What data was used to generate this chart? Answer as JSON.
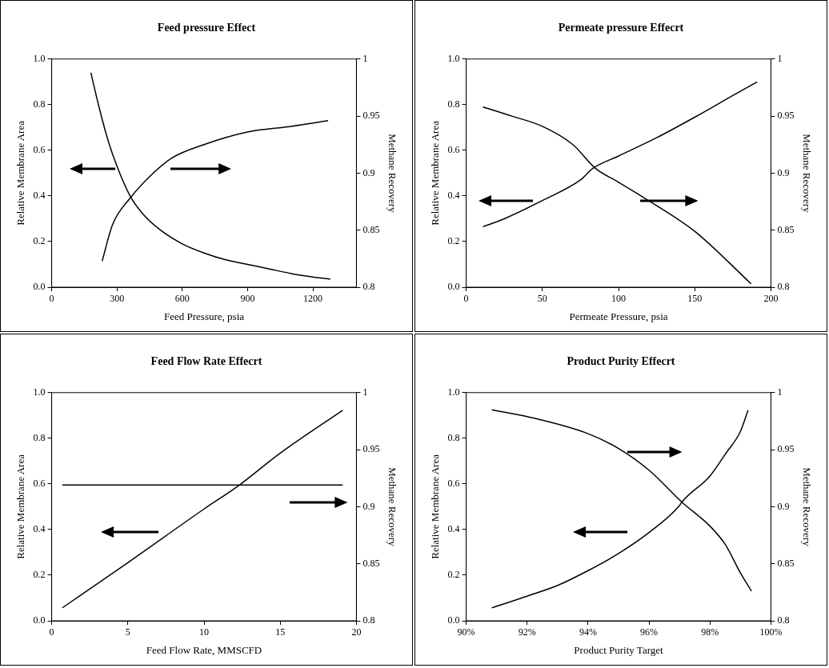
{
  "chart_data": [
    {
      "type": "line",
      "title": "Feed pressure Effect",
      "xlabel": "Feed Pressure, psia",
      "ylabel": "Relative Membrane Area",
      "y2label": "Methane Recovery",
      "marker": "none",
      "xlim": [
        0,
        1400
      ],
      "xticks": [
        0,
        300,
        600,
        900,
        1200
      ],
      "ylim": [
        0,
        1
      ],
      "yticks": [
        {
          "value": 0,
          "label": "0.0"
        },
        {
          "value": 0.2,
          "label": "0.2"
        },
        {
          "value": 0.4,
          "label": "0.4"
        },
        {
          "value": 0.6,
          "label": "0.6"
        },
        {
          "value": 0.8,
          "label": "0.8"
        },
        {
          "value": 1,
          "label": "1.0"
        }
      ],
      "y2lim": [
        0.8,
        1
      ],
      "y2ticks": [
        0.8,
        0.85,
        0.9,
        0.95,
        1
      ],
      "series": [
        {
          "color": "#000000",
          "x": [
            180,
            220,
            260,
            300,
            360,
            420,
            500,
            600,
            700,
            800,
            900,
            1000,
            1100,
            1200,
            1280
          ],
          "values": [
            0.94,
            0.78,
            0.64,
            0.53,
            0.4,
            0.32,
            0.25,
            0.19,
            0.15,
            0.12,
            0.1,
            0.08,
            0.06,
            0.045,
            0.035
          ]
        },
        {
          "color": "#000000",
          "axis": "y2",
          "x": [
            232,
            280,
            360,
            450,
            550,
            700,
            900,
            1100,
            1270
          ],
          "values": [
            0.823,
            0.855,
            0.878,
            0.897,
            0.913,
            0.925,
            0.936,
            0.941,
            0.946
          ]
        }
      ]
    },
    {
      "type": "line",
      "title": "Permeate pressure Effecrt",
      "xlabel": "Permeate Pressure, psia",
      "ylabel": "Relative Membrane Area",
      "y2label": "Methane Recovery",
      "marker": "none",
      "xlim": [
        0,
        200
      ],
      "xticks": [
        0,
        50,
        100,
        150,
        200
      ],
      "ylim": [
        0,
        1
      ],
      "yticks": [
        {
          "value": 0,
          "label": "0.0"
        },
        {
          "value": 0.2,
          "label": "0.2"
        },
        {
          "value": 0.4,
          "label": "0.4"
        },
        {
          "value": 0.6,
          "label": "0.6"
        },
        {
          "value": 0.8,
          "label": "0.8"
        },
        {
          "value": 1,
          "label": "1.0"
        }
      ],
      "y2lim": [
        0.8,
        1
      ],
      "y2ticks": [
        0.8,
        0.85,
        0.9,
        0.95,
        1
      ],
      "series": [
        {
          "color": "#000000",
          "x": [
            11,
            25,
            50,
            75,
            83,
            100,
            125,
            150,
            175,
            191
          ],
          "values": [
            0.265,
            0.3,
            0.38,
            0.47,
            0.52,
            0.575,
            0.655,
            0.745,
            0.84,
            0.9
          ]
        },
        {
          "color": "#000000",
          "axis": "y2",
          "x": [
            11,
            30,
            50,
            70,
            85,
            100,
            116,
            150,
            187
          ],
          "values": [
            0.958,
            0.95,
            0.941,
            0.925,
            0.904,
            0.892,
            0.879,
            0.849,
            0.803
          ]
        }
      ]
    },
    {
      "type": "line",
      "title": "Feed Flow Rate Effecrt",
      "xlabel": "Feed Flow Rate, MMSCFD",
      "ylabel": "Relative Membrane Area",
      "y2label": "Methane Recovery",
      "marker": "none",
      "xlim": [
        0,
        20
      ],
      "xticks": [
        0,
        5,
        10,
        15,
        20
      ],
      "ylim": [
        0,
        1
      ],
      "yticks": [
        {
          "value": 0,
          "label": "0.0"
        },
        {
          "value": 0.2,
          "label": "0.2"
        },
        {
          "value": 0.4,
          "label": "0.4"
        },
        {
          "value": 0.6,
          "label": "0.6"
        },
        {
          "value": 0.8,
          "label": "0.8"
        },
        {
          "value": 1,
          "label": "1.0"
        }
      ],
      "y2lim": [
        0.8,
        1
      ],
      "y2ticks": [
        0.8,
        0.85,
        0.9,
        0.95,
        1
      ],
      "series": [
        {
          "color": "#000000",
          "x": [
            0.7,
            5,
            10,
            12.3,
            15,
            19.1
          ],
          "values": [
            0.057,
            0.255,
            0.49,
            0.594,
            0.735,
            0.923
          ]
        },
        {
          "color": "#000000",
          "axis": "y2",
          "x": [
            0.7,
            19.1
          ],
          "values": [
            0.919,
            0.919
          ]
        }
      ]
    },
    {
      "type": "line",
      "title": "Product Purity Effecrt",
      "xlabel": "Product Purity Target",
      "ylabel": "Relative Membrane Area",
      "y2label": "Methane Recovery",
      "marker": "none",
      "xlim": [
        90,
        100
      ],
      "xticks": [
        {
          "value": 90,
          "label": "90%"
        },
        {
          "value": 92,
          "label": "92%"
        },
        {
          "value": 94,
          "label": "94%"
        },
        {
          "value": 96,
          "label": "96%"
        },
        {
          "value": 98,
          "label": "98%"
        },
        {
          "value": 100,
          "label": "100%"
        }
      ],
      "ylim": [
        0,
        1
      ],
      "yticks": [
        {
          "value": 0,
          "label": "0.0"
        },
        {
          "value": 0.2,
          "label": "0.2"
        },
        {
          "value": 0.4,
          "label": "0.4"
        },
        {
          "value": 0.6,
          "label": "0.6"
        },
        {
          "value": 0.8,
          "label": "0.8"
        },
        {
          "value": 1,
          "label": "1.0"
        }
      ],
      "y2lim": [
        0.8,
        1
      ],
      "y2ticks": [
        0.8,
        0.85,
        0.9,
        0.95,
        1
      ],
      "series": [
        {
          "color": "#000000",
          "x": [
            90.84,
            92,
            93,
            94,
            95,
            96,
            97,
            97.08,
            98,
            98.5,
            99,
            99.25
          ],
          "values": [
            0.057,
            0.108,
            0.155,
            0.22,
            0.295,
            0.387,
            0.505,
            0.521,
            0.635,
            0.73,
            0.83,
            0.923
          ]
        },
        {
          "color": "#000000",
          "axis": "y2",
          "x": [
            90.84,
            92,
            94,
            95,
            96,
            97.08,
            98,
            98.5,
            99,
            99.36
          ],
          "values": [
            0.985,
            0.979,
            0.964,
            0.951,
            0.932,
            0.904,
            0.883,
            0.867,
            0.842,
            0.826
          ]
        }
      ]
    }
  ]
}
